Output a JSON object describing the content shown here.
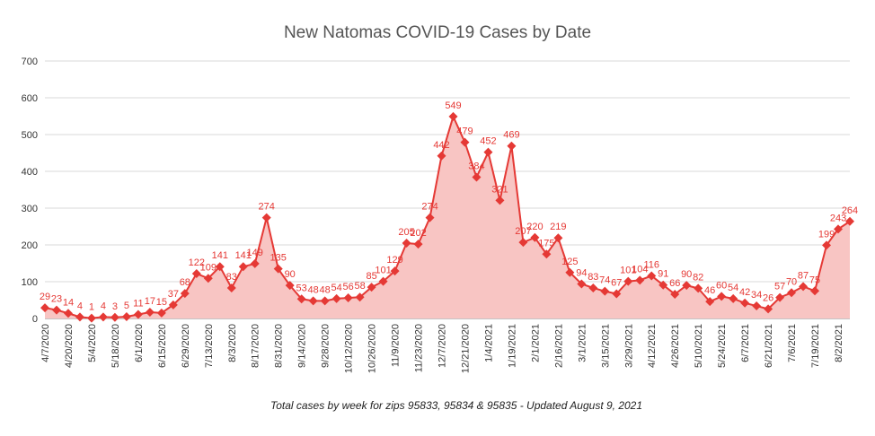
{
  "chart_data": {
    "type": "line",
    "title": "New Natomas COVID-19 Cases by Date",
    "xlabel": "Total cases by week for zips 95833, 95834 & 95835 - Updated August 9, 2021",
    "categories": [
      "4/7/2020",
      null,
      "4/20/2020",
      null,
      "5/4/2020",
      null,
      "5/18/2020",
      null,
      "6/1/2020",
      null,
      "6/15/2020",
      null,
      "6/29/2020",
      null,
      "7/13/2020",
      null,
      "8/3/2020",
      null,
      "8/17/2020",
      null,
      "8/31/2020",
      null,
      "9/14/2020",
      null,
      "9/28/2020",
      null,
      "10/12/2020",
      null,
      "10/26/2020",
      null,
      "11/9/2020",
      null,
      "11/23/2020",
      null,
      "12/7/2020",
      null,
      "12/21/2020",
      null,
      "1/4/2021",
      null,
      "1/19/2021",
      null,
      "2/1/2021",
      null,
      "2/16/2021",
      null,
      "3/1/2021",
      null,
      "3/15/2021",
      null,
      "3/29/2021",
      null,
      "4/12/2021",
      null,
      "4/26/2021",
      null,
      "5/10/2021",
      null,
      "5/24/2021",
      null,
      "6/7/2021",
      null,
      "6/21/2021",
      null,
      "7/6/2021",
      null,
      "7/19/2021",
      null,
      "8/2/2021",
      null
    ],
    "values": [
      29,
      23,
      14,
      4,
      1,
      4,
      3,
      5,
      11,
      17,
      15,
      37,
      68,
      122,
      109,
      141,
      83,
      141,
      149,
      274,
      135,
      90,
      53,
      48,
      48,
      54,
      56,
      58,
      85,
      101,
      129,
      205,
      202,
      274,
      442,
      549,
      479,
      384,
      452,
      321,
      469,
      207,
      220,
      175,
      219,
      125,
      94,
      83,
      74,
      67,
      101,
      104,
      116,
      91,
      66,
      90,
      82,
      46,
      60,
      54,
      42,
      34,
      26,
      57,
      70,
      87,
      75,
      199,
      243,
      264
    ],
    "color": "#e53935",
    "fill": "#f8c5c3",
    "ylim": [
      0,
      700
    ],
    "yticks": [
      0,
      100,
      200,
      300,
      400,
      500,
      600,
      700
    ],
    "grid": true
  }
}
